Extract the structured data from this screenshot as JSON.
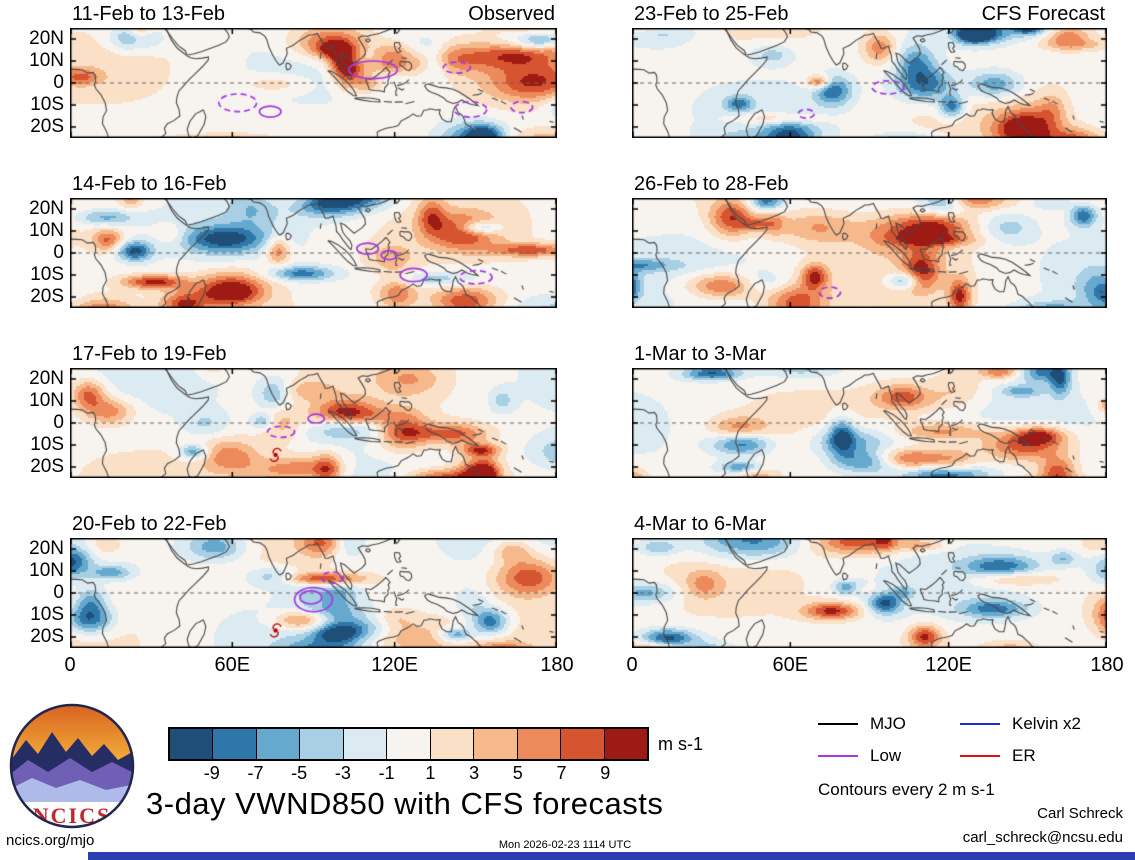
{
  "chart_data": {
    "type": "heatmap",
    "variable": "VWND850",
    "title": "3-day VWND850 with CFS forecasts",
    "projection": {
      "lon_range": [
        0,
        180
      ],
      "lat_range": [
        -25,
        25
      ]
    },
    "x_ticks": {
      "labels": [
        "0",
        "60E",
        "120E",
        "180"
      ],
      "lons": [
        0,
        60,
        120,
        180
      ]
    },
    "y_ticks": {
      "labels": [
        "20N",
        "10N",
        "0",
        "10S",
        "20S"
      ],
      "lats": [
        20,
        10,
        0,
        -10,
        -20
      ]
    },
    "colorbar": {
      "levels": [
        -9,
        -7,
        -5,
        -3,
        -1,
        1,
        3,
        5,
        7,
        9
      ],
      "colors": [
        "#1f4e79",
        "#2e77a8",
        "#66a9cf",
        "#a8cfe3",
        "#dcebf2",
        "#f7f3ee",
        "#fbe0c8",
        "#f6b98c",
        "#ec8a5c",
        "#d6542f",
        "#9e1a15"
      ],
      "unit": "m s-1"
    },
    "panels": [
      {
        "title": "11-Feb to 13-Feb",
        "corner_label": "Observed",
        "column": 0,
        "row": 0,
        "overlays": [
          {
            "kind": "low",
            "style": "solid",
            "lon": 112,
            "lat": 6,
            "rlon": 9,
            "rlat": 4
          },
          {
            "kind": "low",
            "style": "dashed",
            "lon": 143,
            "lat": 7,
            "rlon": 5,
            "rlat": 2.5
          },
          {
            "kind": "low",
            "style": "dashed",
            "lon": 62,
            "lat": -9,
            "rlon": 7,
            "rlat": 4
          },
          {
            "kind": "low",
            "style": "solid",
            "lon": 74,
            "lat": -13,
            "rlon": 4,
            "rlat": 2.5
          },
          {
            "kind": "low",
            "style": "dashed",
            "lon": 148,
            "lat": -12,
            "rlon": 6,
            "rlat": 3.5
          },
          {
            "kind": "low",
            "style": "dashed",
            "lon": 167,
            "lat": -11,
            "rlon": 4,
            "rlat": 2.5
          }
        ]
      },
      {
        "title": "14-Feb to 16-Feb",
        "corner_label": "",
        "column": 0,
        "row": 1,
        "overlays": [
          {
            "kind": "low",
            "style": "solid",
            "lon": 110,
            "lat": 2,
            "rlon": 4,
            "rlat": 2.5
          },
          {
            "kind": "low",
            "style": "solid",
            "lon": 118,
            "lat": -1,
            "rlon": 3,
            "rlat": 2
          },
          {
            "kind": "low",
            "style": "solid",
            "lon": 127,
            "lat": -10,
            "rlon": 5,
            "rlat": 3
          },
          {
            "kind": "low",
            "style": "dashed",
            "lon": 150,
            "lat": -11,
            "rlon": 6,
            "rlat": 3
          }
        ]
      },
      {
        "title": "17-Feb to 19-Feb",
        "corner_label": "",
        "column": 0,
        "row": 2,
        "overlays": [
          {
            "kind": "low",
            "style": "dashed",
            "lon": 78,
            "lat": -4,
            "rlon": 5,
            "rlat": 2.5
          },
          {
            "kind": "low",
            "style": "solid",
            "lon": 91,
            "lat": 2,
            "rlon": 3,
            "rlat": 2
          },
          {
            "kind": "tc",
            "lon": 76,
            "lat": -14.5
          }
        ]
      },
      {
        "title": "20-Feb to 22-Feb",
        "corner_label": "",
        "column": 0,
        "row": 3,
        "overlays": [
          {
            "kind": "low",
            "style": "solid",
            "lon": 90,
            "lat": -3,
            "rlon": 7,
            "rlat": 5.5
          },
          {
            "kind": "low",
            "style": "solid",
            "lon": 89,
            "lat": -2,
            "rlon": 4,
            "rlat": 3
          },
          {
            "kind": "low",
            "style": "dashed",
            "lon": 97,
            "lat": 7,
            "rlon": 4,
            "rlat": 2.5
          },
          {
            "kind": "tc",
            "lon": 76,
            "lat": -17
          }
        ]
      },
      {
        "title": "23-Feb to 25-Feb",
        "corner_label": "CFS Forecast",
        "column": 1,
        "row": 0,
        "overlays": [
          {
            "kind": "low",
            "style": "dashed",
            "lon": 97,
            "lat": -2,
            "rlon": 6,
            "rlat": 3
          },
          {
            "kind": "low",
            "style": "dashed",
            "lon": 66,
            "lat": -14,
            "rlon": 3,
            "rlat": 2
          }
        ]
      },
      {
        "title": "26-Feb to 28-Feb",
        "corner_label": "",
        "column": 1,
        "row": 1,
        "overlays": [
          {
            "kind": "low",
            "style": "dashed",
            "lon": 75,
            "lat": -18,
            "rlon": 4,
            "rlat": 2.5
          }
        ]
      },
      {
        "title": "1-Mar to 3-Mar",
        "corner_label": "",
        "column": 1,
        "row": 2,
        "overlays": []
      },
      {
        "title": "4-Mar to 6-Mar",
        "corner_label": "",
        "column": 1,
        "row": 3,
        "overlays": []
      }
    ],
    "legend": [
      {
        "label": "MJO",
        "color": "#000000"
      },
      {
        "label": "Low",
        "color": "#a43ae0"
      },
      {
        "label": "Kelvin x2",
        "color": "#1133cc"
      },
      {
        "label": "ER",
        "color": "#dd1111"
      }
    ],
    "contour_note": "Contours every 2 m s-1"
  },
  "footer": {
    "site": "ncics.org/mjo",
    "timestamp": "Mon 2026-02-23 1114 UTC",
    "credit_name": "Carl Schreck",
    "credit_email": "carl_schreck@ncsu.edu"
  },
  "logo": {
    "text": "NCICS"
  },
  "colors": {
    "accent_bar": "#2c3eb0",
    "coast": "#4a4a4a",
    "equator": "#666666"
  }
}
